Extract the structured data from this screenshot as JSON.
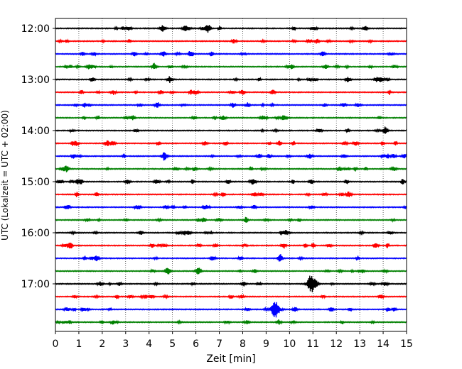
{
  "chart_data": {
    "type": "line",
    "xlabel": "Zeit  [min]",
    "ylabel": "UTC (Lokalzeit = UTC + 02:00)",
    "xlim": [
      0,
      15
    ],
    "x_ticks": [
      "0",
      "1",
      "2",
      "3",
      "4",
      "5",
      "6",
      "7",
      "8",
      "9",
      "10",
      "11",
      "12",
      "13",
      "14",
      "15"
    ],
    "y_tick_labels": [
      "12:00",
      "13:00",
      "14:00",
      "15:00",
      "16:00",
      "17:00"
    ],
    "grid": "vertical-dotted",
    "row_colors": [
      "#000000",
      "#ff0000",
      "#0000ff",
      "#008000"
    ],
    "rows": [
      {
        "time": "12:00",
        "color": "#000000"
      },
      {
        "time": "12:15",
        "color": "#ff0000"
      },
      {
        "time": "12:30",
        "color": "#0000ff"
      },
      {
        "time": "12:45",
        "color": "#008000"
      },
      {
        "time": "13:00",
        "color": "#000000"
      },
      {
        "time": "13:15",
        "color": "#ff0000"
      },
      {
        "time": "13:30",
        "color": "#0000ff"
      },
      {
        "time": "13:45",
        "color": "#008000"
      },
      {
        "time": "14:00",
        "color": "#000000"
      },
      {
        "time": "14:15",
        "color": "#ff0000"
      },
      {
        "time": "14:30",
        "color": "#0000ff"
      },
      {
        "time": "14:45",
        "color": "#008000"
      },
      {
        "time": "15:00",
        "color": "#000000"
      },
      {
        "time": "15:15",
        "color": "#ff0000"
      },
      {
        "time": "15:30",
        "color": "#0000ff"
      },
      {
        "time": "15:45",
        "color": "#008000"
      },
      {
        "time": "16:00",
        "color": "#000000"
      },
      {
        "time": "16:15",
        "color": "#ff0000"
      },
      {
        "time": "16:30",
        "color": "#0000ff"
      },
      {
        "time": "16:45",
        "color": "#008000"
      },
      {
        "time": "17:00",
        "color": "#000000"
      },
      {
        "time": "17:15",
        "color": "#ff0000"
      },
      {
        "time": "17:30",
        "color": "#0000ff"
      },
      {
        "time": "17:45",
        "color": "#008000"
      }
    ],
    "events": [
      {
        "row": "17:00",
        "minute": 10.95,
        "amplitude": "large"
      },
      {
        "row": "17:30",
        "minute": 9.4,
        "amplitude": "large"
      },
      {
        "row": "16:45",
        "minute": 6.1,
        "amplitude": "medium"
      },
      {
        "row": "12:00",
        "minute": 6.5,
        "amplitude": "small"
      },
      {
        "row": "13:00",
        "minute": 12.5,
        "amplitude": "small"
      },
      {
        "row": "15:00",
        "minute": 8.4,
        "amplitude": "small"
      }
    ]
  }
}
